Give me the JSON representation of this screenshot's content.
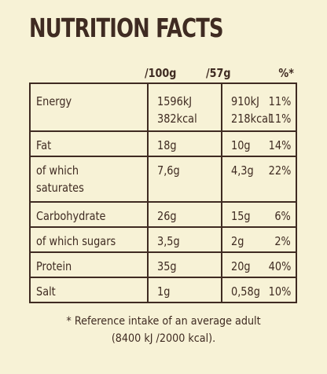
{
  "title": "NUTRITION FACTS",
  "headers": {
    "per100": "/100g",
    "per57": "/57g",
    "pct": "%*"
  },
  "rows": [
    {
      "name_lines": [
        "Energy"
      ],
      "per100_lines": [
        "1596kJ",
        "382kcal"
      ],
      "per57_lines": [
        "910kJ",
        "218kcal"
      ],
      "pct_lines": [
        "11%",
        "11%"
      ]
    },
    {
      "name_lines": [
        "Fat"
      ],
      "per100_lines": [
        "18g"
      ],
      "per57_lines": [
        "10g"
      ],
      "pct_lines": [
        "14%"
      ]
    },
    {
      "name_lines": [
        "of which",
        "saturates"
      ],
      "per100_lines": [
        "7,6g"
      ],
      "per57_lines": [
        "4,3g"
      ],
      "pct_lines": [
        "22%"
      ]
    },
    {
      "name_lines": [
        "Carbohydrate"
      ],
      "per100_lines": [
        "26g"
      ],
      "per57_lines": [
        "15g"
      ],
      "pct_lines": [
        "6%"
      ]
    },
    {
      "name_lines": [
        "of which sugars"
      ],
      "per100_lines": [
        "3,5g"
      ],
      "per57_lines": [
        "2g"
      ],
      "pct_lines": [
        "2%"
      ]
    },
    {
      "name_lines": [
        "Protein"
      ],
      "per100_lines": [
        "35g"
      ],
      "per57_lines": [
        "20g"
      ],
      "pct_lines": [
        "40%"
      ]
    },
    {
      "name_lines": [
        "Salt"
      ],
      "per100_lines": [
        "1g"
      ],
      "per57_lines": [
        "0,58g"
      ],
      "pct_lines": [
        "10%"
      ]
    }
  ],
  "footnote": {
    "line1": "* Reference intake of an average adult",
    "line2": "(8400 kJ /2000 kcal)."
  }
}
